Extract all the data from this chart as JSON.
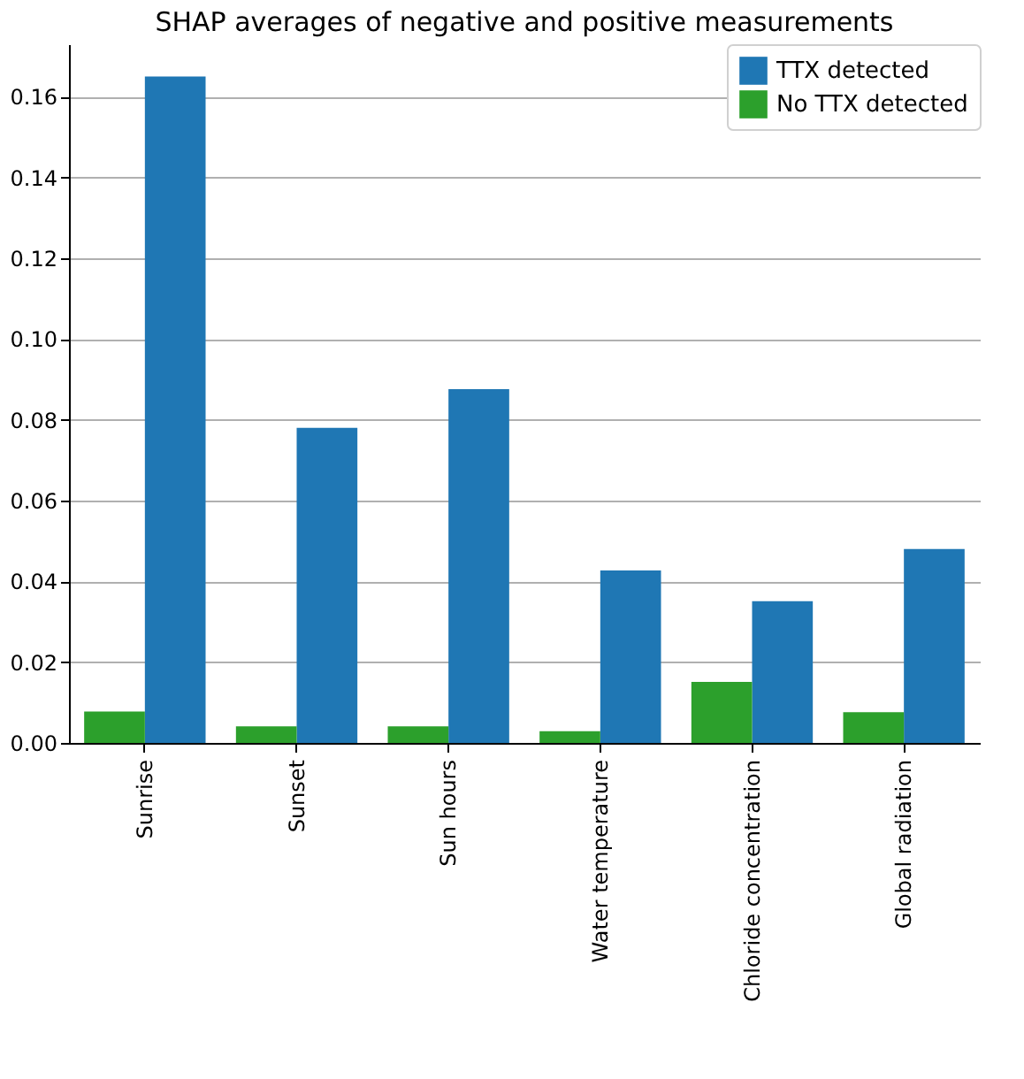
{
  "chart_data": {
    "type": "bar",
    "title": "SHAP averages of negative and positive measurements",
    "categories": [
      "Sunrise",
      "Sunset",
      "Sun hours",
      "Water temperature",
      "Chloride concentration",
      "Global radiation"
    ],
    "series": [
      {
        "name": "TTX detected",
        "color": "#1f77b4",
        "values": [
          0.165,
          0.078,
          0.0876,
          0.0427,
          0.0351,
          0.048
        ]
      },
      {
        "name": "No TTX detected",
        "color": "#2ca02c",
        "values": [
          0.0078,
          0.0041,
          0.0041,
          0.0029,
          0.0151,
          0.0076
        ]
      }
    ],
    "ylim": [
      0,
      0.173
    ],
    "yticks": [
      {
        "value": 0,
        "label": "0.00"
      },
      {
        "value": 0.02,
        "label": "0.02"
      },
      {
        "value": 0.04,
        "label": "0.04"
      },
      {
        "value": 0.06,
        "label": "0.06"
      },
      {
        "value": 0.08,
        "label": "0.08"
      },
      {
        "value": 0.1,
        "label": "0.10"
      },
      {
        "value": 0.12,
        "label": "0.12"
      },
      {
        "value": 0.14,
        "label": "0.14"
      },
      {
        "value": 0.16,
        "label": "0.16"
      }
    ],
    "grid": "y",
    "legend": "top right"
  }
}
